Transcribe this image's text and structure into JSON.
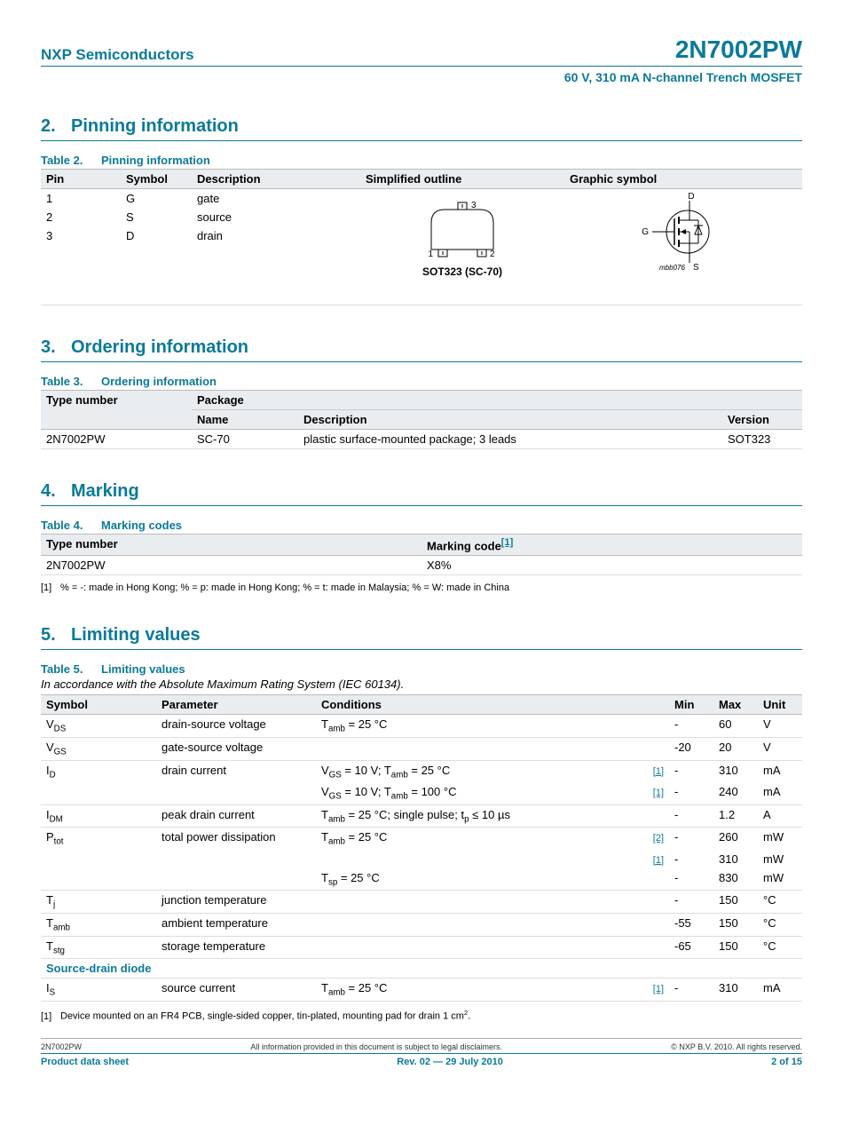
{
  "header": {
    "company": "NXP Semiconductors",
    "part": "2N7002PW",
    "subtitle": "60 V, 310 mA N-channel Trench MOSFET"
  },
  "sections": {
    "s2": {
      "num": "2.",
      "title": "Pinning information"
    },
    "s3": {
      "num": "3.",
      "title": "Ordering information"
    },
    "s4": {
      "num": "4.",
      "title": "Marking"
    },
    "s5": {
      "num": "5.",
      "title": "Limiting values"
    }
  },
  "table2": {
    "caption_num": "Table 2.",
    "caption": "Pinning information",
    "headers": {
      "pin": "Pin",
      "symbol": "Symbol",
      "desc": "Description",
      "outline": "Simplified outline",
      "graphic": "Graphic symbol"
    },
    "rows": [
      {
        "pin": "1",
        "sym": "G",
        "desc": "gate"
      },
      {
        "pin": "2",
        "sym": "S",
        "desc": "source"
      },
      {
        "pin": "3",
        "sym": "D",
        "desc": "drain"
      }
    ],
    "outline_label": "SOT323 (SC-70)",
    "pins": {
      "p1": "1",
      "p2": "2",
      "p3": "3"
    },
    "mosfet": {
      "g": "G",
      "d": "D",
      "s": "S",
      "ref": "mbb076"
    }
  },
  "table3": {
    "caption_num": "Table 3.",
    "caption": "Ordering information",
    "h_type": "Type number",
    "h_pkg": "Package",
    "h_name": "Name",
    "h_desc": "Description",
    "h_ver": "Version",
    "row": {
      "type": "2N7002PW",
      "name": "SC-70",
      "desc": "plastic surface-mounted package; 3 leads",
      "ver": "SOT323"
    }
  },
  "table4": {
    "caption_num": "Table 4.",
    "caption": "Marking codes",
    "h_type": "Type number",
    "h_mark": "Marking code",
    "ref": "[1]",
    "row": {
      "type": "2N7002PW",
      "code": "X8%"
    },
    "footnote_num": "[1]",
    "footnote": "% = -: made in Hong Kong; % = p: made in Hong Kong; % = t: made in Malaysia; % = W: made in China"
  },
  "table5": {
    "caption_num": "Table 5.",
    "caption": "Limiting values",
    "subcaption": "In accordance with the Absolute Maximum Rating System (IEC 60134).",
    "headers": {
      "sym": "Symbol",
      "param": "Parameter",
      "cond": "Conditions",
      "min": "Min",
      "max": "Max",
      "unit": "Unit"
    },
    "rows": [
      {
        "sym": "V",
        "sub": "DS",
        "param": "drain-source voltage",
        "cond": "T<sub>amb</sub> = 25 °C",
        "ref": "",
        "min": "-",
        "max": "60",
        "unit": "V"
      },
      {
        "sym": "V",
        "sub": "GS",
        "param": "gate-source voltage",
        "cond": "",
        "ref": "",
        "min": "-20",
        "max": "20",
        "unit": "V"
      },
      {
        "sym": "I",
        "sub": "D",
        "param": "drain current",
        "cond": "V<sub>GS</sub> = 10 V; T<sub>amb</sub> = 25 °C",
        "ref": "[1]",
        "min": "-",
        "max": "310",
        "unit": "mA"
      },
      {
        "sym": "",
        "sub": "",
        "param": "",
        "cond": "V<sub>GS</sub> = 10 V; T<sub>amb</sub> = 100 °C",
        "ref": "[1]",
        "min": "-",
        "max": "240",
        "unit": "mA"
      },
      {
        "sym": "I",
        "sub": "DM",
        "param": "peak drain current",
        "cond": "T<sub>amb</sub> = 25 °C; single pulse; t<sub>p</sub> ≤ 10 µs",
        "ref": "",
        "min": "-",
        "max": "1.2",
        "unit": "A"
      },
      {
        "sym": "P",
        "sub": "tot",
        "param": "total power dissipation",
        "cond": "T<sub>amb</sub> = 25 °C",
        "ref": "[2]",
        "min": "-",
        "max": "260",
        "unit": "mW"
      },
      {
        "sym": "",
        "sub": "",
        "param": "",
        "cond": "",
        "ref": "[1]",
        "min": "-",
        "max": "310",
        "unit": "mW"
      },
      {
        "sym": "",
        "sub": "",
        "param": "",
        "cond": "T<sub>sp</sub> = 25 °C",
        "ref": "",
        "min": "-",
        "max": "830",
        "unit": "mW"
      },
      {
        "sym": "T",
        "sub": "j",
        "param": "junction temperature",
        "cond": "",
        "ref": "",
        "min": "-",
        "max": "150",
        "unit": "°C"
      },
      {
        "sym": "T",
        "sub": "amb",
        "param": "ambient temperature",
        "cond": "",
        "ref": "",
        "min": "-55",
        "max": "150",
        "unit": "°C"
      },
      {
        "sym": "T",
        "sub": "stg",
        "param": "storage temperature",
        "cond": "",
        "ref": "",
        "min": "-65",
        "max": "150",
        "unit": "°C"
      }
    ],
    "subsection": "Source-drain diode",
    "row_diode": {
      "sym": "I",
      "sub": "S",
      "param": "source current",
      "cond": "T<sub>amb</sub> = 25 °C",
      "ref": "[1]",
      "min": "-",
      "max": "310",
      "unit": "mA"
    },
    "footnote_num": "[1]",
    "footnote": "Device mounted on an FR4 PCB, single-sided copper, tin-plated, mounting pad for drain 1 cm",
    "footnote_sup": "2",
    "footnote_end": "."
  },
  "footer": {
    "left": "2N7002PW",
    "mid": "All information provided in this document is subject to legal disclaimers.",
    "right": "© NXP B.V. 2010. All rights reserved.",
    "bl": "Product data sheet",
    "bm": "Rev. 02 — 29 July 2010",
    "br": "2 of 15"
  }
}
